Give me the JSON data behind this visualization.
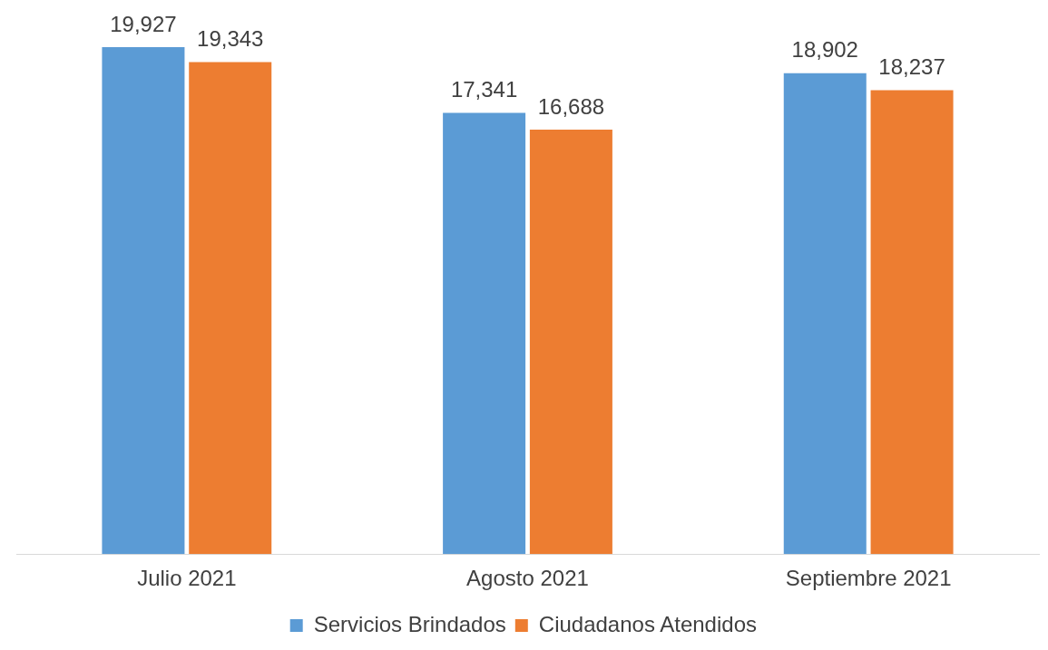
{
  "chart_data": {
    "type": "bar",
    "categories": [
      "Julio 2021",
      "Agosto 2021",
      "Septiembre 2021"
    ],
    "series": [
      {
        "name": "Servicios Brindados",
        "color": "#5b9bd5",
        "values": [
          19927,
          17341,
          18902
        ],
        "value_labels": [
          "19,927",
          "17,341",
          "18,902"
        ]
      },
      {
        "name": "Ciudadanos Atendidos",
        "color": "#ed7d31",
        "values": [
          19343,
          16688,
          18237
        ],
        "value_labels": [
          "19,343",
          "16,688",
          "18,237"
        ]
      }
    ],
    "tick_labels": "x",
    "grid": false,
    "legend": "bottom"
  }
}
